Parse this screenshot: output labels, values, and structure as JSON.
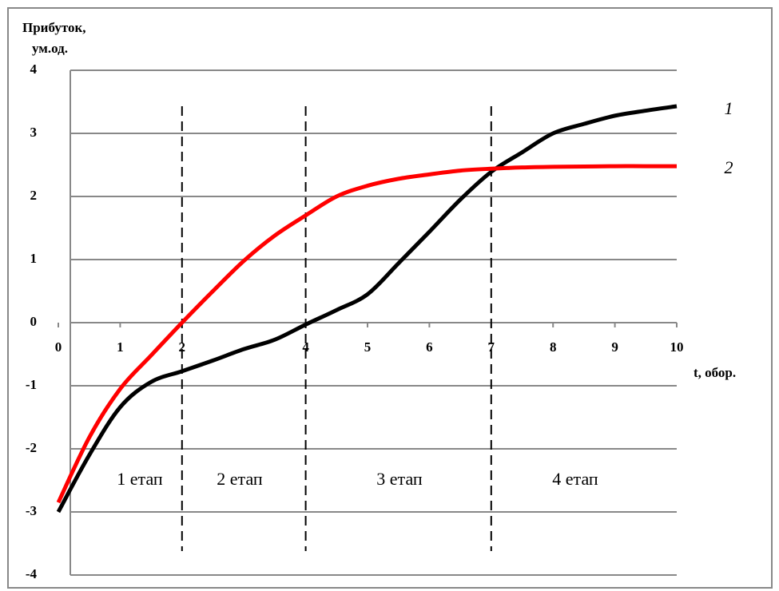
{
  "chart_data": {
    "type": "line",
    "y_label": [
      "Прибуток,",
      "ум.од."
    ],
    "x_label": "t, обор.",
    "x": [
      0,
      0.5,
      1,
      1.5,
      2,
      2.5,
      3,
      3.5,
      4,
      4.5,
      5,
      5.5,
      6,
      6.5,
      7,
      7.5,
      8,
      8.5,
      9,
      9.5,
      10
    ],
    "series": [
      {
        "name": "1",
        "color": "#000000",
        "values": [
          -3,
          -2.1,
          -1.34,
          -0.94,
          -0.77,
          -0.6,
          -0.42,
          -0.27,
          -0.03,
          0.2,
          0.45,
          0.94,
          1.44,
          1.95,
          2.39,
          2.7,
          3.0,
          3.15,
          3.28,
          3.36,
          3.43
        ]
      },
      {
        "name": "2",
        "color": "#ff0000",
        "values": [
          -2.85,
          -1.82,
          -1.05,
          -0.52,
          0.0,
          0.5,
          0.98,
          1.38,
          1.7,
          2.0,
          2.17,
          2.28,
          2.35,
          2.41,
          2.44,
          2.46,
          2.47,
          2.475,
          2.48,
          2.48,
          2.48
        ]
      }
    ],
    "stage_boundaries": [
      2,
      4,
      7
    ],
    "stages": [
      "1 етап",
      "2 етап",
      "3 етап",
      "4 етап"
    ],
    "xlim": [
      0,
      10
    ],
    "xticks": [
      0,
      1,
      2,
      4,
      5,
      6,
      7,
      8,
      9,
      10
    ],
    "ylim": [
      -4,
      4
    ],
    "yticks": [
      -4,
      -3,
      -2,
      -1,
      0,
      1,
      2,
      3,
      4
    ],
    "grid": true
  }
}
